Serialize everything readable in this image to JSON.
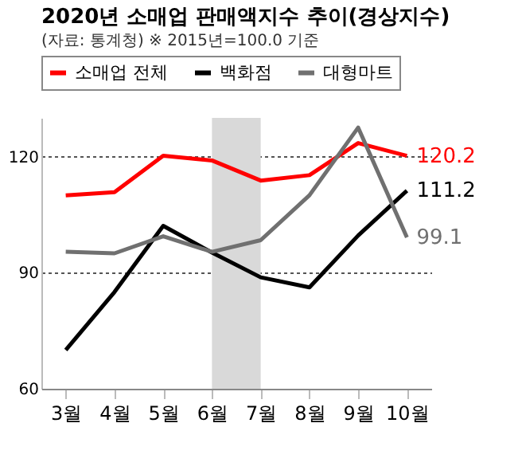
{
  "chart_data": {
    "type": "line",
    "title": "2020년 소매업 판매액지수 추이(경상지수)",
    "subtitle": "(자료: 통계청) ※ 2015년=100.0 기준",
    "categories": [
      "3월",
      "4월",
      "5월",
      "6월",
      "7월",
      "8월",
      "9월",
      "10월"
    ],
    "series": [
      {
        "name": "소매업 전체",
        "color": "#ff0000",
        "values": [
          110,
          110.8,
          120.2,
          119,
          113.8,
          115.2,
          123.5,
          120.2
        ],
        "value_labels": [
          null,
          null,
          null,
          null,
          null,
          null,
          null,
          "120.2"
        ]
      },
      {
        "name": "백화점",
        "color": "#000000",
        "values": [
          70,
          85,
          102.1,
          95.2,
          88.8,
          86.2,
          99.6,
          111.2
        ],
        "value_labels": [
          null,
          null,
          null,
          null,
          null,
          null,
          null,
          "111.2"
        ]
      },
      {
        "name": "대형마트",
        "color": "#707070",
        "values": [
          95.4,
          95,
          99.4,
          95.4,
          98.4,
          110,
          127.5,
          99.1
        ],
        "value_labels": [
          null,
          null,
          null,
          null,
          null,
          null,
          null,
          "99.1"
        ]
      }
    ],
    "ylim": [
      60,
      130
    ],
    "yticks": [
      60,
      90,
      120
    ],
    "grid": "y",
    "legend": "top",
    "marker": "none",
    "line_style": "solid",
    "bands": [
      {
        "axis": "x",
        "from": "6월",
        "to": "7월",
        "color": "#d9d9d9"
      }
    ]
  }
}
